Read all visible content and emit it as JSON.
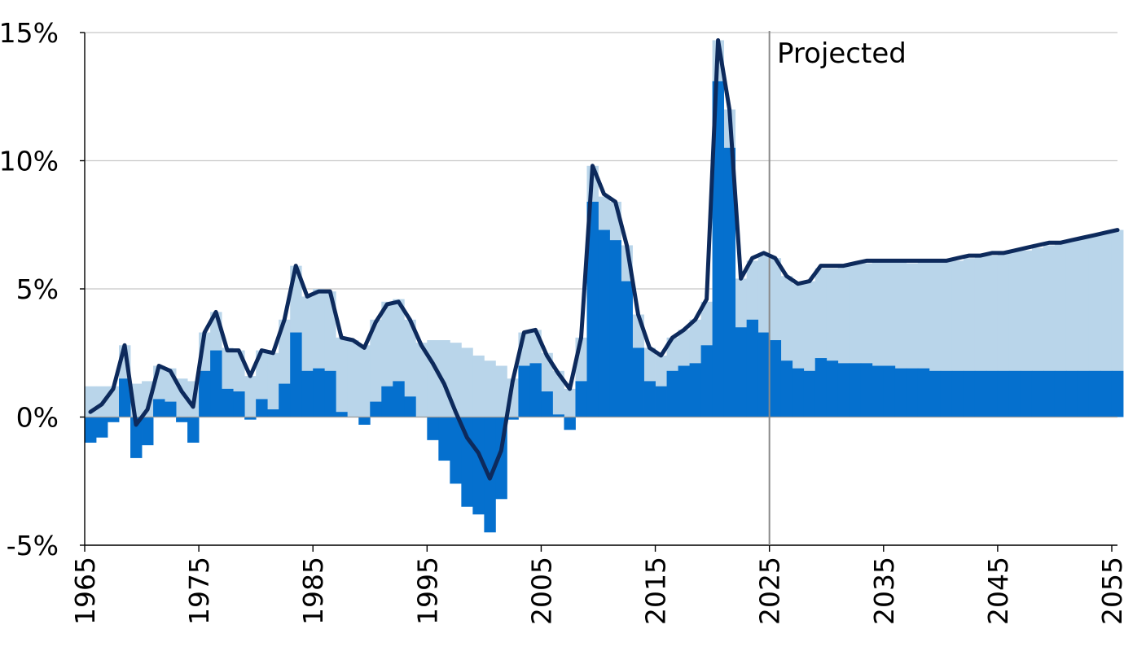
{
  "chart_data": {
    "type": "bar",
    "title": "",
    "xlabel": "",
    "ylabel": "",
    "ylim": [
      -5,
      15
    ],
    "yticks": [
      -5,
      0,
      5,
      10,
      15
    ],
    "ytick_labels": [
      "-5%",
      "0%",
      "5%",
      "10%",
      "15%"
    ],
    "xlim": [
      1965,
      2055.5
    ],
    "xticks": [
      1965,
      1975,
      1985,
      1995,
      2005,
      2015,
      2025,
      2035,
      2045,
      2055
    ],
    "xtick_labels": [
      "1965",
      "1975",
      "1985",
      "1995",
      "2005",
      "2015",
      "2025",
      "2035",
      "2045",
      "2055"
    ],
    "grid": "horizontal",
    "legend": "none",
    "projection_start": 2025,
    "annotation": "Projected",
    "colors": {
      "light_bar": "#b9d5ea",
      "dark_bar": "#0570ce",
      "line": "#0d2a5c",
      "grid": "#c8c8c8",
      "divider": "#8a8a8a"
    },
    "years": [
      1965,
      1966,
      1967,
      1968,
      1969,
      1970,
      1971,
      1972,
      1973,
      1974,
      1975,
      1976,
      1977,
      1978,
      1979,
      1980,
      1981,
      1982,
      1983,
      1984,
      1985,
      1986,
      1987,
      1988,
      1989,
      1990,
      1991,
      1992,
      1993,
      1994,
      1995,
      1996,
      1997,
      1998,
      1999,
      2000,
      2001,
      2002,
      2003,
      2004,
      2005,
      2006,
      2007,
      2008,
      2009,
      2010,
      2011,
      2012,
      2013,
      2014,
      2015,
      2016,
      2017,
      2018,
      2019,
      2020,
      2021,
      2022,
      2023,
      2024,
      2025,
      2026,
      2027,
      2028,
      2029,
      2030,
      2031,
      2032,
      2033,
      2034,
      2035,
      2036,
      2037,
      2038,
      2039,
      2040,
      2041,
      2042,
      2043,
      2044,
      2045,
      2046,
      2047,
      2048,
      2049,
      2050,
      2051,
      2052,
      2053,
      2054,
      2055
    ],
    "series": [
      {
        "style": "light-bar",
        "values": [
          1.2,
          1.2,
          1.2,
          2.8,
          1.3,
          1.4,
          2.0,
          1.9,
          1.5,
          1.4,
          3.3,
          4.1,
          2.7,
          2.6,
          1.6,
          2.6,
          2.5,
          3.8,
          5.9,
          4.7,
          5.0,
          4.9,
          3.1,
          3.0,
          2.8,
          3.8,
          4.5,
          4.6,
          3.8,
          2.9,
          3.0,
          3.0,
          2.9,
          2.7,
          2.4,
          2.2,
          2.0,
          1.5,
          3.3,
          3.4,
          2.5,
          1.8,
          1.1,
          3.1,
          9.8,
          8.6,
          8.4,
          6.7,
          4.0,
          2.7,
          2.4,
          3.1,
          3.4,
          3.8,
          4.5,
          14.7,
          12.0,
          5.4,
          6.1,
          6.3,
          6.2,
          5.5,
          5.2,
          5.3,
          5.8,
          5.8,
          5.9,
          6.0,
          6.0,
          6.1,
          6.1,
          6.1,
          6.0,
          6.1,
          6.1,
          6.1,
          6.1,
          6.2,
          6.3,
          6.3,
          6.4,
          6.5,
          6.5,
          6.6,
          6.7,
          6.8,
          6.9,
          7.0,
          7.1,
          7.2,
          7.3
        ]
      },
      {
        "style": "dark-bar",
        "values": [
          -1.0,
          -0.8,
          -0.2,
          1.5,
          -1.6,
          -1.1,
          0.7,
          0.6,
          -0.2,
          -1.0,
          1.8,
          2.6,
          1.1,
          1.0,
          -0.1,
          0.7,
          0.3,
          1.3,
          3.3,
          1.8,
          1.9,
          1.8,
          0.2,
          0.0,
          -0.3,
          0.6,
          1.2,
          1.4,
          0.8,
          0.0,
          -0.9,
          -1.7,
          -2.6,
          -3.5,
          -3.8,
          -4.5,
          -3.2,
          -0.1,
          2.0,
          2.1,
          1.0,
          0.1,
          -0.5,
          1.4,
          8.4,
          7.3,
          6.9,
          5.3,
          2.7,
          1.4,
          1.2,
          1.8,
          2.0,
          2.1,
          2.8,
          13.1,
          10.5,
          3.5,
          3.8,
          3.3,
          3.0,
          2.2,
          1.9,
          1.8,
          2.3,
          2.2,
          2.1,
          2.1,
          2.1,
          2.0,
          2.0,
          1.9,
          1.9,
          1.9,
          1.8,
          1.8,
          1.8,
          1.8,
          1.8,
          1.8,
          1.8,
          1.8,
          1.8,
          1.8,
          1.8,
          1.8,
          1.8,
          1.8,
          1.8,
          1.8,
          1.8
        ]
      },
      {
        "style": "line",
        "values": [
          0.2,
          0.5,
          1.1,
          2.8,
          -0.3,
          0.3,
          2.0,
          1.8,
          1.0,
          0.4,
          3.3,
          4.1,
          2.6,
          2.6,
          1.6,
          2.6,
          2.5,
          3.8,
          5.9,
          4.7,
          4.9,
          4.9,
          3.1,
          3.0,
          2.7,
          3.7,
          4.4,
          4.5,
          3.8,
          2.8,
          2.1,
          1.3,
          0.2,
          -0.8,
          -1.4,
          -2.4,
          -1.3,
          1.4,
          3.3,
          3.4,
          2.4,
          1.7,
          1.1,
          3.1,
          9.8,
          8.7,
          8.4,
          6.7,
          4.0,
          2.7,
          2.4,
          3.1,
          3.4,
          3.8,
          4.6,
          14.7,
          12.0,
          5.4,
          6.2,
          6.4,
          6.2,
          5.5,
          5.2,
          5.3,
          5.9,
          5.9,
          5.9,
          6.0,
          6.1,
          6.1,
          6.1,
          6.1,
          6.1,
          6.1,
          6.1,
          6.1,
          6.2,
          6.3,
          6.3,
          6.4,
          6.4,
          6.5,
          6.6,
          6.7,
          6.8,
          6.8,
          6.9,
          7.0,
          7.1,
          7.2,
          7.3
        ]
      }
    ]
  }
}
